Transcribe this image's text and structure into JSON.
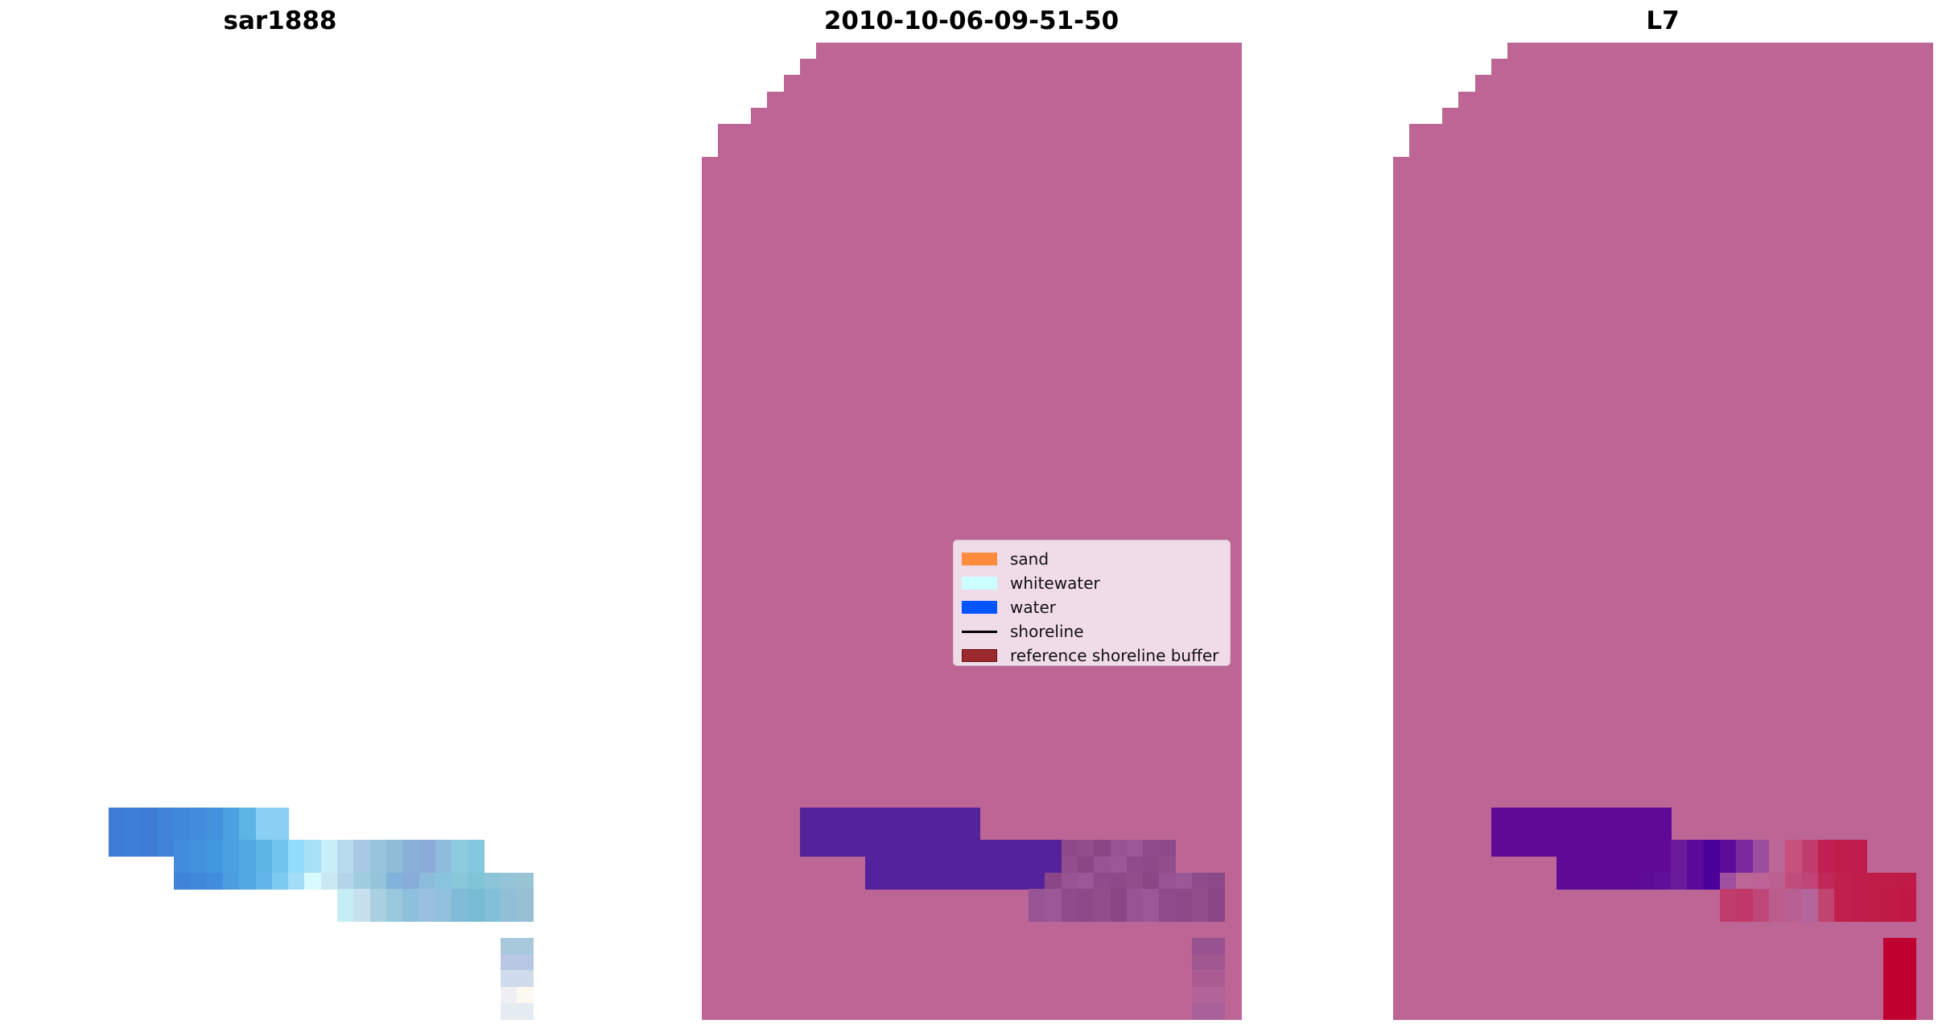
{
  "chart_data": {
    "type": "heatmap",
    "panels": [
      {
        "title": "sar1888",
        "kind": "rgb"
      },
      {
        "title": "2010-10-06-09-51-50",
        "kind": "classified"
      },
      {
        "title": "L7",
        "kind": "probability"
      }
    ],
    "legend": {
      "placement": "center-right",
      "entries": [
        {
          "label": "sand",
          "color": "#ff8c3c",
          "type": "patch"
        },
        {
          "label": "whitewater",
          "color": "#ccffff",
          "type": "patch"
        },
        {
          "label": "water",
          "color": "#0055ff",
          "type": "patch"
        },
        {
          "label": "shoreline",
          "color": "#000000",
          "type": "line"
        },
        {
          "label": "reference shoreline buffer",
          "color": "#9a2a2e",
          "type": "patch"
        }
      ]
    },
    "grid": {
      "columns": 33,
      "rows": 60
    },
    "colors": {
      "background_class": "#bd6696",
      "water_class": "#54229a",
      "water_probability": "#5e0a96",
      "buffer_red": "#c0002e"
    }
  }
}
